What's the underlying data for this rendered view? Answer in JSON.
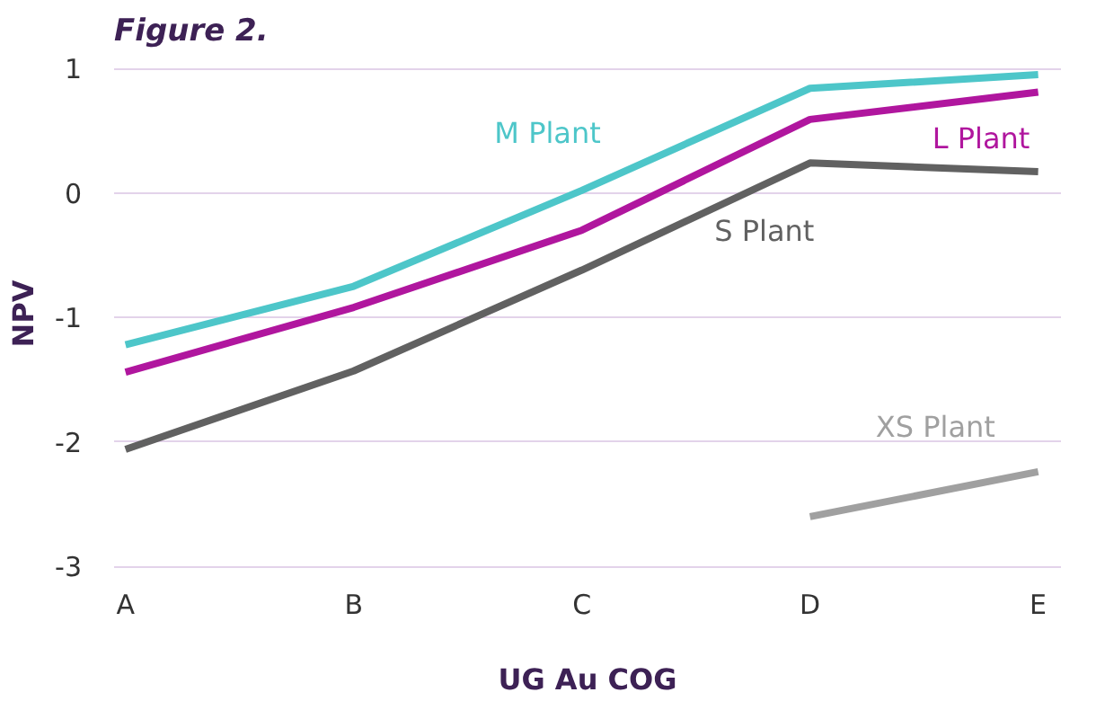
{
  "chart_data": {
    "type": "line",
    "title": "Figure 2.",
    "xlabel": "UG Au COG",
    "ylabel": "NPV",
    "categories": [
      "A",
      "B",
      "C",
      "D",
      "E"
    ],
    "series": [
      {
        "name": "M Plant",
        "color": "#4dc6c9",
        "values": [
          -1.22,
          -0.75,
          0.02,
          0.84,
          0.95
        ]
      },
      {
        "name": "L Plant",
        "color": "#b0169e",
        "values": [
          -1.44,
          -0.92,
          -0.3,
          0.59,
          0.81
        ]
      },
      {
        "name": "S Plant",
        "color": "#616161",
        "values": [
          -2.06,
          -1.43,
          -0.62,
          0.24,
          0.17
        ]
      },
      {
        "name": "XS Plant",
        "color": "#a0a0a0",
        "values": [
          null,
          null,
          null,
          -2.6,
          -2.24
        ]
      }
    ],
    "ylim": [
      -3,
      1
    ],
    "yticks": [
      -3,
      -2,
      -1,
      0,
      1
    ],
    "grid": "y",
    "marker": "none",
    "line_style": "solid"
  }
}
